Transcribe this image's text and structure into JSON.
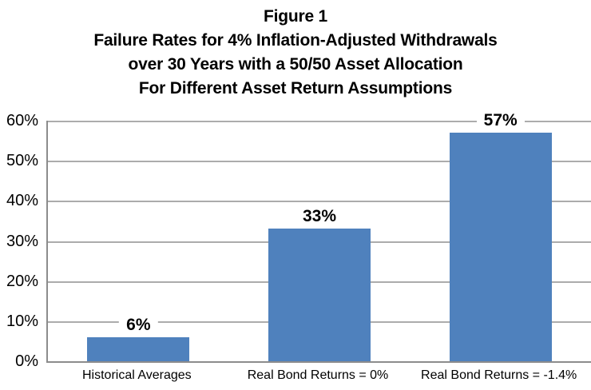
{
  "chart_data": {
    "type": "bar",
    "title": "Figure 1: Failure Rates for 4% Inflation-Adjusted Withdrawals over 30 Years with a 50/50 Asset Allocation For Different Asset Return Assumptions",
    "title_lines": [
      "Figure 1",
      "Failure Rates for 4% Inflation-Adjusted Withdrawals",
      "over 30 Years with a 50/50 Asset Allocation",
      "For Different Asset Return Assumptions"
    ],
    "categories": [
      "Historical Averages",
      "Real Bond Returns = 0%",
      "Real Bond Returns = -1.4%"
    ],
    "values": [
      6,
      33,
      57
    ],
    "value_labels": [
      "6%",
      "33%",
      "57%"
    ],
    "xlabel": "",
    "ylabel": "",
    "ylim": [
      0,
      60
    ],
    "yticks": [
      0,
      10,
      20,
      30,
      40,
      50,
      60
    ],
    "ytick_labels": [
      "0%",
      "10%",
      "20%",
      "30%",
      "40%",
      "50%",
      "60%"
    ],
    "grid": true,
    "legend": false,
    "bar_color": "#4F81BD",
    "gridline_color": "#ACACAC",
    "axis_color": "#8C8C8C",
    "text_color": "#000000",
    "background_color": "#FFFFFF"
  }
}
